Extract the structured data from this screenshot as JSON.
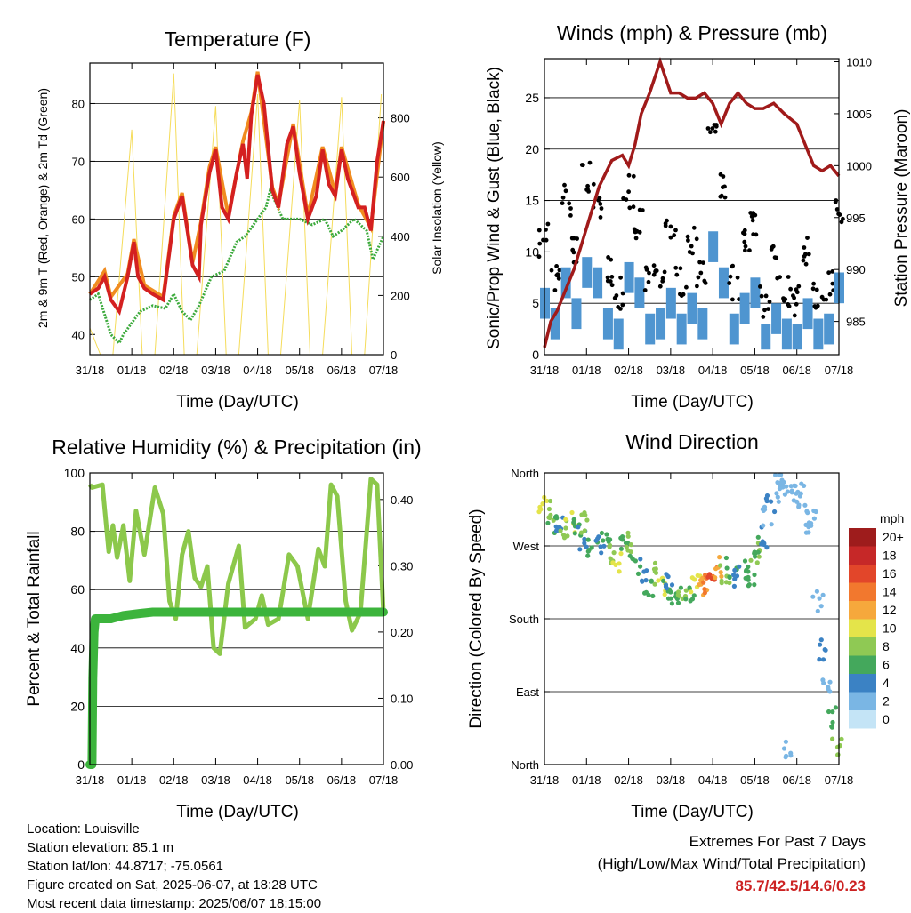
{
  "panels": {
    "temperature": {
      "title": "Temperature (F)",
      "ylabel": "2m & 9m T (Red, Orange) & 2m Td (Green)",
      "y2label": "Solar Insolation (Yellow)",
      "xlabel": "Time (Day/UTC)"
    },
    "winds": {
      "title": "Winds (mph) & Pressure (mb)",
      "ylabel": "Sonic/Prop Wind & Gust (Blue, Black)",
      "y2label": "Station Pressure (Maroon)",
      "xlabel": "Time (Day/UTC)"
    },
    "humidity": {
      "title": "Relative Humidity (%) & Precipitation (in)",
      "ylabel": "Percent & Total Rainfall",
      "xlabel": "Time (Day/UTC)"
    },
    "direction": {
      "title": "Wind Direction",
      "ylabel": "Direction (Colored By Speed)",
      "xlabel": "Time (Day/UTC)",
      "legend_title": "mph"
    }
  },
  "info": {
    "location": "Location: Louisville",
    "elevation": "Station elevation: 85.1 m",
    "latlon": "Station lat/lon: 44.8717; -75.0561",
    "created": "Figure created on Sat, 2025-06-07, at 18:28 UTC",
    "recent": "Most recent data timestamp: 2025/06/07 18:15:00"
  },
  "extremes": {
    "line1": "Extremes For Past 7 Days",
    "line2": "(High/Low/Max Wind/Total Precipitation)",
    "values": "85.7/42.5/14.6/0.23"
  },
  "colors": {
    "temp2m": "#d42020",
    "temp9m": "#f08c20",
    "dewpoint": "#3caa3c",
    "solar": "#f5dc5a",
    "wind": "#4f95d0",
    "gust": "#000000",
    "pressure": "#a01a1a",
    "rh": "#8cc84b",
    "precip": "#3cb43c"
  },
  "chart_data": [
    {
      "id": "temperature",
      "type": "line",
      "title": "Temperature (F)",
      "xlabel": "Time (Day/UTC)",
      "ylabel": "2m & 9m T (Red, Orange) & 2m Td (Green)",
      "y2label": "Solar Insolation (Yellow)",
      "x_ticks": [
        "31/18",
        "01/18",
        "02/18",
        "03/18",
        "04/18",
        "05/18",
        "06/18",
        "07/18"
      ],
      "xlim": [
        0,
        7
      ],
      "y_ticks": [
        40,
        50,
        60,
        70,
        80
      ],
      "ylim": [
        36.5,
        87
      ],
      "y2_ticks": [
        0,
        200,
        400,
        600,
        800
      ],
      "y2lim": [
        0,
        985
      ],
      "grid": "horizontal",
      "series": [
        {
          "name": "2m T",
          "axis": "left",
          "x": [
            0,
            0.2,
            0.35,
            0.5,
            0.7,
            0.9,
            1.05,
            1.15,
            1.3,
            1.5,
            1.75,
            2.0,
            2.2,
            2.45,
            2.6,
            2.65,
            2.85,
            3.0,
            3.15,
            3.3,
            3.5,
            3.65,
            3.75,
            3.85,
            4.0,
            4.15,
            4.35,
            4.5,
            4.7,
            4.85,
            5.0,
            5.2,
            5.4,
            5.55,
            5.7,
            5.85,
            6.0,
            6.15,
            6.4,
            6.55,
            6.7,
            6.85,
            7.0
          ],
          "y": [
            47,
            48,
            50,
            46,
            44,
            50,
            56,
            50,
            48,
            47,
            46,
            60,
            64,
            52,
            50,
            59,
            68,
            72,
            62,
            60,
            68,
            73,
            67,
            78,
            85,
            80,
            65,
            62,
            73,
            76,
            68,
            60,
            64,
            72,
            66,
            64,
            72,
            67,
            62,
            62,
            58,
            70,
            77
          ]
        },
        {
          "name": "9m T",
          "axis": "left",
          "x": [
            0,
            0.35,
            0.5,
            0.9,
            1.05,
            1.3,
            1.75,
            2.0,
            2.2,
            2.45,
            2.65,
            2.85,
            3.0,
            3.3,
            3.65,
            3.85,
            4.0,
            4.35,
            4.5,
            4.85,
            5.2,
            5.55,
            5.85,
            6.0,
            6.4,
            6.7,
            7.0
          ],
          "y": [
            47,
            51,
            46.5,
            50.5,
            56.5,
            48.5,
            46.5,
            60.5,
            64.5,
            52.5,
            59.5,
            69,
            72.5,
            60.5,
            73.5,
            78.5,
            85.5,
            65.5,
            62.5,
            76.5,
            60.5,
            72.5,
            64.5,
            72.5,
            62.5,
            58.5,
            77
          ]
        },
        {
          "name": "2m Td",
          "axis": "left",
          "x": [
            0,
            0.2,
            0.5,
            0.7,
            0.8,
            1.0,
            1.2,
            1.5,
            1.8,
            2.0,
            2.2,
            2.4,
            2.6,
            2.9,
            3.2,
            3.5,
            3.7,
            4.0,
            4.2,
            4.3,
            4.6,
            5.0,
            5.3,
            5.6,
            5.8,
            6.0,
            6.3,
            6.6,
            6.75,
            7.0
          ],
          "y": [
            46,
            47,
            40,
            38.5,
            40,
            42,
            44,
            45,
            44.5,
            47,
            44,
            42.5,
            45,
            50,
            51,
            56,
            57,
            60,
            62,
            65,
            60,
            60,
            59,
            60,
            57,
            58,
            60,
            58,
            53,
            57
          ]
        },
        {
          "name": "Solar insolation",
          "axis": "right",
          "x": [
            0,
            0.25,
            0.4,
            0.55,
            1.0,
            1.25,
            1.4,
            1.55,
            2.0,
            2.25,
            2.4,
            2.55,
            3.0,
            3.25,
            3.4,
            3.55,
            4.0,
            4.25,
            4.4,
            4.55,
            5.0,
            5.25,
            5.4,
            5.55,
            6.0,
            6.25,
            6.4,
            6.55,
            6.95
          ],
          "y": [
            90,
            0,
            0,
            0,
            760,
            0,
            0,
            0,
            950,
            0,
            0,
            0,
            840,
            0,
            0,
            0,
            880,
            0,
            0,
            0,
            860,
            0,
            0,
            0,
            870,
            0,
            0,
            0,
            880
          ]
        }
      ]
    },
    {
      "id": "winds",
      "type": "scatter",
      "title": "Winds (mph) & Pressure (mb)",
      "xlabel": "Time (Day/UTC)",
      "ylabel": "Sonic/Prop Wind & Gust (Blue, Black)",
      "y2label": "Station Pressure (Maroon)",
      "x_ticks": [
        "31/18",
        "01/18",
        "02/18",
        "03/18",
        "04/18",
        "05/18",
        "06/18",
        "07/18"
      ],
      "xlim": [
        0,
        7
      ],
      "y_ticks": [
        0,
        5,
        10,
        15,
        20,
        25
      ],
      "ylim": [
        0,
        28.8
      ],
      "y2_ticks": [
        985,
        990,
        995,
        1000,
        1005,
        1010
      ],
      "y2lim": [
        981.8,
        1010.3
      ],
      "grid": "horizontal",
      "series": [
        {
          "name": "Wind",
          "axis": "left",
          "x": [
            0,
            0.25,
            0.5,
            0.75,
            1.0,
            1.25,
            1.5,
            1.75,
            2.0,
            2.25,
            2.5,
            2.75,
            3.0,
            3.25,
            3.5,
            3.75,
            4.0,
            4.25,
            4.5,
            4.75,
            5.0,
            5.25,
            5.5,
            5.75,
            6.0,
            6.25,
            6.5,
            6.75,
            7.0
          ],
          "y": [
            6.5,
            4.5,
            8.5,
            5.5,
            9.5,
            8.5,
            4.5,
            3.5,
            9.0,
            7.5,
            4.0,
            4.5,
            6.5,
            4.0,
            6.0,
            4.5,
            12.0,
            8.5,
            4.0,
            6.0,
            7.5,
            3.0,
            5.0,
            3.5,
            3.0,
            5.5,
            3.5,
            4.0,
            8.0
          ]
        },
        {
          "name": "Gust",
          "axis": "left",
          "x": [
            0,
            0.25,
            0.5,
            0.75,
            1.0,
            1.25,
            1.5,
            1.75,
            2.0,
            2.25,
            2.5,
            2.75,
            3.0,
            3.25,
            3.5,
            3.75,
            4.0,
            4.25,
            4.5,
            4.75,
            5.0,
            5.25,
            5.5,
            5.75,
            6.0,
            6.25,
            6.5,
            6.75,
            7.0
          ],
          "y": [
            11.0,
            8.0,
            15.0,
            10.0,
            17.0,
            15.0,
            8.0,
            6.0,
            16.0,
            13.0,
            7.0,
            8.0,
            12.0,
            7.0,
            11.0,
            8.0,
            22.0,
            16.0,
            7.0,
            11.0,
            13.0,
            5.0,
            9.0,
            6.0,
            5.0,
            10.0,
            6.0,
            7.0,
            14.0
          ]
        },
        {
          "name": "Station pressure",
          "axis": "right",
          "x": [
            0,
            0.15,
            0.3,
            0.5,
            0.7,
            1.0,
            1.3,
            1.6,
            1.85,
            2.0,
            2.15,
            2.3,
            2.5,
            2.75,
            3.0,
            3.2,
            3.4,
            3.6,
            3.8,
            4.0,
            4.2,
            4.4,
            4.6,
            4.8,
            5.0,
            5.2,
            5.45,
            5.7,
            6.0,
            6.2,
            6.4,
            6.6,
            6.8,
            7.0
          ],
          "y": [
            982.5,
            985,
            986,
            988,
            990,
            994,
            998,
            1000.5,
            1001,
            1000,
            1002,
            1005,
            1007,
            1010,
            1007,
            1007,
            1006.5,
            1006.5,
            1007,
            1006,
            1004,
            1006,
            1007,
            1006,
            1005.5,
            1005.5,
            1006,
            1005,
            1004,
            1002,
            1000,
            999.5,
            1000,
            999
          ]
        }
      ]
    },
    {
      "id": "humidity",
      "type": "line",
      "title": "Relative Humidity (%) & Precipitation (in)",
      "xlabel": "Time (Day/UTC)",
      "ylabel": "Percent & Total Rainfall",
      "x_ticks": [
        "31/18",
        "01/18",
        "02/18",
        "03/18",
        "04/18",
        "05/18",
        "06/18",
        "07/18"
      ],
      "xlim": [
        0,
        7
      ],
      "y_ticks": [
        0,
        20,
        40,
        60,
        80,
        100
      ],
      "ylim": [
        0,
        100
      ],
      "y2_ticks": [
        "0.00",
        "0.10",
        "0.20",
        "0.30",
        "0.40"
      ],
      "y2lim": [
        0,
        0.44
      ],
      "grid": "horizontal",
      "series": [
        {
          "name": "Relative humidity",
          "axis": "left",
          "x": [
            0,
            0.05,
            0.3,
            0.45,
            0.55,
            0.65,
            0.8,
            0.95,
            1.1,
            1.3,
            1.55,
            1.75,
            1.9,
            2.05,
            2.2,
            2.35,
            2.5,
            2.65,
            2.8,
            2.95,
            3.1,
            3.3,
            3.55,
            3.7,
            3.95,
            4.1,
            4.25,
            4.5,
            4.75,
            4.95,
            5.2,
            5.45,
            5.6,
            5.75,
            5.9,
            6.1,
            6.25,
            6.45,
            6.7,
            6.85,
            7.0
          ],
          "y": [
            96,
            95,
            96,
            73,
            82,
            71,
            82,
            63,
            87,
            72,
            95,
            86,
            56,
            50,
            72,
            80,
            64,
            61,
            68,
            40,
            38,
            62,
            75,
            47,
            50,
            58,
            48,
            50,
            72,
            68,
            50,
            74,
            68,
            96,
            92,
            56,
            46,
            52,
            98,
            96,
            52
          ]
        },
        {
          "name": "Total precipitation",
          "axis": "right",
          "x": [
            0,
            0.05,
            0.07,
            0.1,
            0.13,
            0.15,
            0.3,
            0.5,
            0.8,
            1.2,
            1.5,
            2.0,
            3.0,
            4.0,
            5.0,
            6.0,
            7.0
          ],
          "y": [
            0,
            0,
            0.13,
            0.2,
            0.22,
            0.22,
            0.22,
            0.22,
            0.225,
            0.228,
            0.23,
            0.23,
            0.23,
            0.23,
            0.23,
            0.23,
            0.23
          ]
        }
      ]
    },
    {
      "id": "direction",
      "type": "scatter",
      "title": "Wind Direction",
      "xlabel": "Time (Day/UTC)",
      "ylabel": "Direction (Colored By Speed)",
      "x_ticks": [
        "31/18",
        "01/18",
        "02/18",
        "03/18",
        "04/18",
        "05/18",
        "06/18",
        "07/18"
      ],
      "xlim": [
        0,
        7
      ],
      "y_ticks": [
        "North",
        "East",
        "South",
        "West",
        "North"
      ],
      "ylim_degrees": [
        0,
        360
      ],
      "grid": "horizontal",
      "legend_title": "mph",
      "legend_labels": [
        "20+",
        "18",
        "16",
        "14",
        "12",
        "10",
        "8",
        "6",
        "4",
        "2",
        "0"
      ],
      "legend_colors": [
        "#9e1c1c",
        "#c62828",
        "#e2462a",
        "#f2782e",
        "#f6a83c",
        "#e4e44a",
        "#8fc954",
        "#44a85c",
        "#3b82c4",
        "#7ab6e4",
        "#c4e4f6"
      ],
      "series": [
        {
          "name": "Wind direction",
          "axis": "left",
          "x": [
            0,
            0.1,
            0.2,
            0.35,
            0.5,
            0.6,
            0.75,
            0.9,
            1.0,
            1.15,
            1.3,
            1.45,
            1.6,
            1.75,
            1.9,
            2.0,
            2.15,
            2.3,
            2.45,
            2.6,
            2.75,
            2.9,
            3.0,
            3.15,
            3.3,
            3.45,
            3.6,
            3.75,
            3.9,
            4.0,
            4.15,
            4.3,
            4.45,
            4.6,
            4.75,
            4.9,
            5.0,
            5.1,
            5.2,
            5.3,
            5.4,
            5.5,
            5.6,
            5.7,
            5.8,
            5.9,
            6.0,
            6.1,
            6.2,
            6.35,
            6.5,
            6.6,
            6.7,
            6.8,
            6.95
          ],
          "y": [
            318,
            312,
            298,
            300,
            288,
            300,
            292,
            280,
            300,
            272,
            268,
            280,
            262,
            252,
            270,
            272,
            248,
            240,
            222,
            235,
            220,
            215,
            228,
            206,
            208,
            214,
            222,
            218,
            225,
            232,
            245,
            232,
            242,
            232,
            238,
            235,
            260,
            270,
            280,
            305,
            320,
            338,
            352,
            340,
            20,
            350,
            340,
            330,
            300,
            300,
            200,
            140,
            100,
            60,
            20
          ],
          "speed": [
            10,
            8,
            6,
            4,
            8,
            10,
            6,
            4,
            8,
            6,
            4,
            6,
            8,
            10,
            6,
            8,
            6,
            4,
            6,
            8,
            10,
            6,
            4,
            6,
            8,
            6,
            10,
            12,
            14,
            16,
            12,
            8,
            6,
            4,
            6,
            6,
            8,
            6,
            4,
            2,
            4,
            2,
            1,
            2,
            1,
            2,
            2,
            1,
            2,
            2,
            2,
            4,
            2,
            6,
            8
          ]
        }
      ]
    }
  ]
}
